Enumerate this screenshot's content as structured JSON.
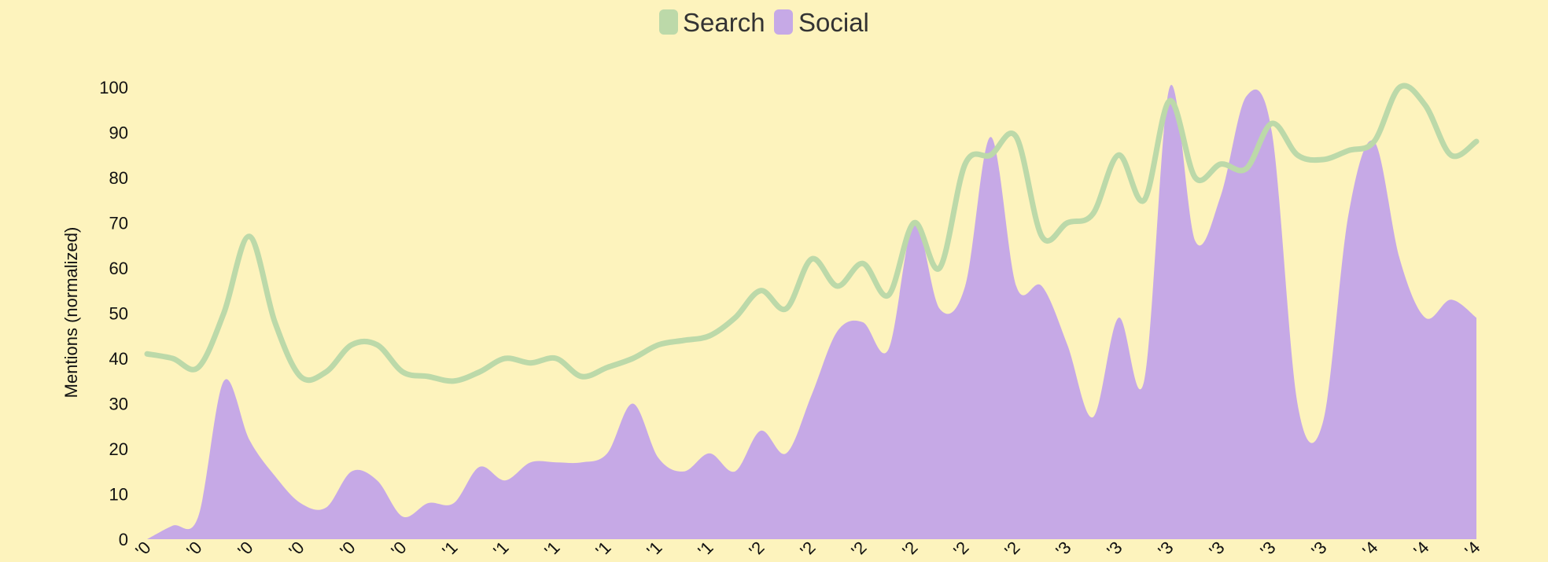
{
  "chart_data": {
    "type": "area",
    "title": "",
    "xlabel": "",
    "ylabel": "Mentions (normalized)",
    "ylim": [
      0,
      100
    ],
    "yticks": [
      0,
      10,
      20,
      30,
      40,
      50,
      60,
      70,
      80,
      90,
      100
    ],
    "legend": "top-center",
    "grid": false,
    "colors": {
      "background": "#fdf3bd",
      "search": "#bcd9a9",
      "social": "#c6a9e6",
      "text": "#111111"
    },
    "x_tick_labels": [
      "'0",
      "'0",
      "'0",
      "'0",
      "'0",
      "'0",
      "'1",
      "'1",
      "'1",
      "'1",
      "'1",
      "'1",
      "'2",
      "'2",
      "'2",
      "'2",
      "'2",
      "'2",
      "'3",
      "'3",
      "'3",
      "'3",
      "'3",
      "'3",
      "'4",
      "'4",
      "'4"
    ],
    "series": [
      {
        "name": "Search",
        "kind": "line",
        "values": [
          41,
          40,
          38,
          50,
          67,
          48,
          36,
          37,
          43,
          43,
          37,
          36,
          35,
          37,
          40,
          39,
          40,
          36,
          38,
          40,
          43,
          44,
          45,
          49,
          55,
          51,
          62,
          56,
          61,
          54,
          70,
          60,
          83,
          85,
          89,
          67,
          70,
          72,
          85,
          75,
          97,
          80,
          83,
          82,
          92,
          85,
          84,
          86,
          88,
          100,
          96,
          85,
          88
        ]
      },
      {
        "name": "Social",
        "kind": "area",
        "values": [
          0,
          3,
          5,
          35,
          22,
          14,
          8,
          7,
          15,
          13,
          5,
          8,
          8,
          16,
          13,
          17,
          17,
          17,
          19,
          30,
          18,
          15,
          19,
          15,
          24,
          19,
          32,
          46,
          48,
          42,
          70,
          51,
          56,
          89,
          56,
          56,
          43,
          27,
          49,
          35,
          100,
          66,
          76,
          98,
          90,
          30,
          26,
          72,
          88,
          62,
          49,
          53,
          49
        ]
      }
    ]
  }
}
